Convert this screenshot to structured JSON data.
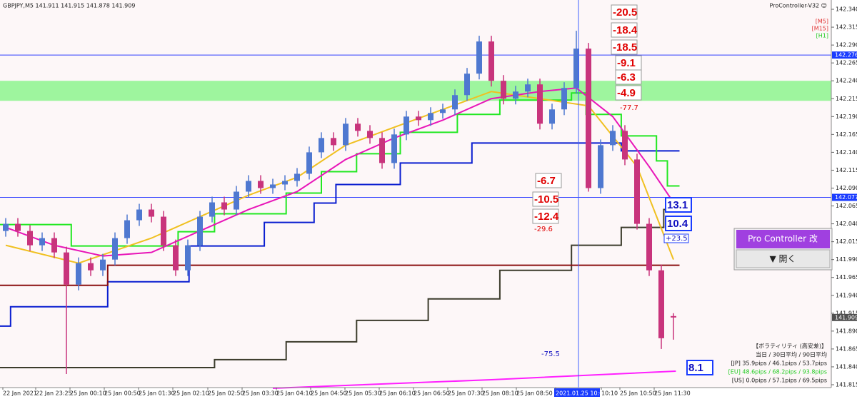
{
  "header": {
    "symbol_info": "GBPJPY,M5  141.911 141.915 141.878 141.909",
    "expert": "ProController-V32 ☺"
  },
  "timeframes": [
    "[M5]",
    "[M15]",
    "[H1]"
  ],
  "chart": {
    "ylim": [
      141.811,
      142.353
    ],
    "yticks": [
      {
        "value": 142.34,
        "label": "142.340"
      },
      {
        "value": 142.315,
        "label": "142.315"
      },
      {
        "value": 142.29,
        "label": "142.290"
      },
      {
        "value": 142.265,
        "label": "142.265"
      },
      {
        "value": 142.24,
        "label": "142.240"
      },
      {
        "value": 142.215,
        "label": "142.215"
      },
      {
        "value": 142.19,
        "label": "142.190"
      },
      {
        "value": 142.165,
        "label": "142.165"
      },
      {
        "value": 142.14,
        "label": "142.140"
      },
      {
        "value": 142.115,
        "label": "142.115"
      },
      {
        "value": 142.09,
        "label": "142.090"
      },
      {
        "value": 142.065,
        "label": "142.065"
      },
      {
        "value": 142.04,
        "label": "142.040"
      },
      {
        "value": 142.015,
        "label": "142.015"
      },
      {
        "value": 141.99,
        "label": "141.990"
      },
      {
        "value": 141.965,
        "label": "141.965"
      },
      {
        "value": 141.94,
        "label": "141.940"
      },
      {
        "value": 141.915,
        "label": "141.915"
      },
      {
        "value": 141.89,
        "label": "141.890"
      },
      {
        "value": 141.865,
        "label": "141.865"
      },
      {
        "value": 141.84,
        "label": "141.840"
      },
      {
        "value": 141.815,
        "label": "141.815"
      }
    ],
    "price_markers": [
      {
        "value": 142.276,
        "label": "142.276",
        "color": "#1a3cff"
      },
      {
        "value": 142.077,
        "label": "142.077",
        "color": "#1a3cff"
      },
      {
        "value": 141.909,
        "label": "141.909",
        "color": "#505050"
      }
    ],
    "time_labels": [
      "22 Jan 2021",
      "22 Jan 23:25",
      "25 Jan 00:10",
      "25 Jan 00:50",
      "25 Jan 01:30",
      "25 Jan 02:10",
      "25 Jan 02:50",
      "25 Jan 03:30",
      "25 Jan 04:10",
      "25 Jan 04:50",
      "25 Jan 05:30",
      "25 Jan 06:10",
      "25 Jan 06:50",
      "25 Jan 07:30",
      "25 Jan 08:10",
      "25 Jan 08:50",
      "2021.01.25 10:00",
      "10:10",
      "25 Jan 10:50",
      "25 Jan 11:30"
    ],
    "zone": {
      "low": 142.212,
      "high": 142.24,
      "color": "#9ef59e"
    },
    "candles": {
      "up_color": "#4f78d0",
      "down_color": "#c8347c",
      "open": [
        142.03,
        142.04,
        142.03,
        142.01,
        142.02,
        142.0,
        141.955,
        141.985,
        141.975,
        141.99,
        142.02,
        142.045,
        142.06,
        142.05,
        142.01,
        141.975,
        142.01,
        142.05,
        142.07,
        142.06,
        142.085,
        142.1,
        142.09,
        142.095,
        142.1,
        142.11,
        142.14,
        142.16,
        142.15,
        142.18,
        142.17,
        142.16,
        142.125,
        142.165,
        142.19,
        142.185,
        142.195,
        142.2,
        142.22,
        142.25,
        142.295,
        142.24,
        142.215,
        142.225,
        142.235,
        142.18,
        142.2,
        142.23,
        142.285,
        142.09,
        142.15,
        142.17,
        142.13,
        142.04,
        141.975,
        141.911
      ],
      "high": [
        142.048,
        142.048,
        142.038,
        142.028,
        142.028,
        142.008,
        141.993,
        141.993,
        141.998,
        142.028,
        142.053,
        142.068,
        142.068,
        142.058,
        142.018,
        142.018,
        142.058,
        142.078,
        142.078,
        142.093,
        142.108,
        142.108,
        142.103,
        142.108,
        142.118,
        142.148,
        142.168,
        142.168,
        142.188,
        142.188,
        142.178,
        142.168,
        142.173,
        142.198,
        142.198,
        142.203,
        142.208,
        142.228,
        142.258,
        142.303,
        142.303,
        142.248,
        142.233,
        142.243,
        142.243,
        142.208,
        142.238,
        142.31,
        142.293,
        142.158,
        142.178,
        142.178,
        142.138,
        142.048,
        141.983,
        141.915
      ],
      "low": [
        142.022,
        142.022,
        142.002,
        142.002,
        141.992,
        141.83,
        141.947,
        141.967,
        141.967,
        141.982,
        142.012,
        142.037,
        142.042,
        142.002,
        141.967,
        141.967,
        142.002,
        142.042,
        142.052,
        142.052,
        142.077,
        142.082,
        142.082,
        142.087,
        142.092,
        142.102,
        142.132,
        142.142,
        142.142,
        142.162,
        142.152,
        142.117,
        142.117,
        142.157,
        142.177,
        142.177,
        142.187,
        142.192,
        142.212,
        142.242,
        142.232,
        142.207,
        142.207,
        142.217,
        142.172,
        142.172,
        142.192,
        142.222,
        142.085,
        142.082,
        142.142,
        142.122,
        142.032,
        141.967,
        141.865,
        141.878
      ],
      "close": [
        142.04,
        142.03,
        142.01,
        142.02,
        142.0,
        141.955,
        141.985,
        141.975,
        141.99,
        142.02,
        142.045,
        142.06,
        142.05,
        142.01,
        141.975,
        142.01,
        142.05,
        142.07,
        142.06,
        142.085,
        142.1,
        142.09,
        142.095,
        142.1,
        142.11,
        142.14,
        142.16,
        142.15,
        142.18,
        142.17,
        142.16,
        142.125,
        142.165,
        142.19,
        142.185,
        142.195,
        142.2,
        142.22,
        142.25,
        142.295,
        142.24,
        142.215,
        142.225,
        142.235,
        142.18,
        142.2,
        142.23,
        142.285,
        142.09,
        142.15,
        142.17,
        142.13,
        142.04,
        141.975,
        141.88,
        141.909
      ]
    },
    "lines": [
      {
        "color": "#0a1ed0",
        "step": true,
        "x": [
          -0.5,
          0.4,
          8.4,
          15.1,
          21.3,
          25.4,
          27.2,
          32.5,
          38.4,
          50.7,
          55.5
        ],
        "values": [
          141.897,
          141.924,
          141.959,
          142.009,
          142.042,
          142.069,
          142.095,
          142.125,
          142.153,
          142.142,
          142.142
        ]
      },
      {
        "color": "#22e822",
        "step": true,
        "x": [
          -0.5,
          5.4,
          14.2,
          17.2,
          23.1,
          26,
          28.9,
          32.5,
          37.2,
          40.7,
          46.6,
          47.8,
          50.7,
          53.6,
          54.5,
          55.5
        ],
        "values": [
          142.039,
          142.009,
          142.029,
          142.054,
          142.083,
          142.113,
          142.138,
          142.168,
          142.193,
          142.213,
          142.223,
          142.193,
          142.163,
          142.128,
          142.093,
          142.093
        ]
      },
      {
        "color": "#3c3c2c",
        "step": true,
        "x": [
          -0.5,
          17.2,
          23.1,
          28.9,
          34.8,
          40.7,
          46.6,
          50.7,
          54.2,
          55.2
        ],
        "values": [
          141.839,
          141.85,
          141.875,
          141.905,
          141.935,
          141.975,
          142.01,
          142.035,
          142.06,
          142.065
        ]
      },
      {
        "color": "#8b1010",
        "step": true,
        "x": [
          -0.5,
          8.4,
          55.5
        ],
        "values": [
          141.954,
          141.982,
          141.982
        ]
      },
      {
        "color": "#ff20ff",
        "step": false,
        "x": [
          22,
          40,
          55.2
        ],
        "values": [
          141.81,
          141.822,
          141.834
        ]
      },
      {
        "color": "#f0c020",
        "step": false,
        "x": [
          0,
          6,
          12,
          16,
          20,
          24,
          28,
          32,
          36,
          40,
          44,
          48,
          52,
          55
        ],
        "values": [
          142.01,
          141.985,
          142.02,
          142.05,
          142.08,
          142.105,
          142.15,
          142.175,
          142.2,
          142.225,
          142.215,
          142.205,
          142.12,
          141.99
        ]
      },
      {
        "color": "#e815b8",
        "step": false,
        "x": [
          0,
          4,
          8,
          12,
          16,
          20,
          24,
          28,
          32,
          36,
          40,
          44,
          47,
          50,
          53,
          55
        ],
        "values": [
          142.035,
          142.01,
          141.995,
          142.0,
          142.03,
          142.06,
          142.085,
          142.13,
          142.16,
          142.185,
          142.215,
          142.225,
          142.23,
          142.19,
          142.12,
          142.07
        ]
      }
    ],
    "h_lines": [
      {
        "value": 142.276,
        "color": "#3040ff"
      },
      {
        "value": 142.077,
        "color": "#3040ff"
      }
    ]
  },
  "annotations": [
    "-20.5",
    "-18.4",
    "-18.5",
    "-9.1",
    "-6.3",
    "-4.9",
    "-6.7",
    "-10.5",
    "-12.4",
    "-29.6",
    "-77.7",
    "13.1",
    "10.4",
    "+23.5",
    "-75.5",
    "8.1"
  ],
  "panel": {
    "title": "Pro Controller 改",
    "button": "▼ 開く"
  },
  "volatility": {
    "title": "【ボラティリティ (高安差)】",
    "columns": "当日 / 30日平均 / 90日平均",
    "rows": [
      {
        "text": "[JP] 35.9pips / 46.1pips / 53.7pips",
        "color": "#202020"
      },
      {
        "text": "[EU] 48.6pips / 68.2pips / 93.8pips",
        "color": "#22cc22"
      },
      {
        "text": "[US] 0.0pips / 57.1pips / 69.5pips",
        "color": "#202020"
      }
    ]
  }
}
